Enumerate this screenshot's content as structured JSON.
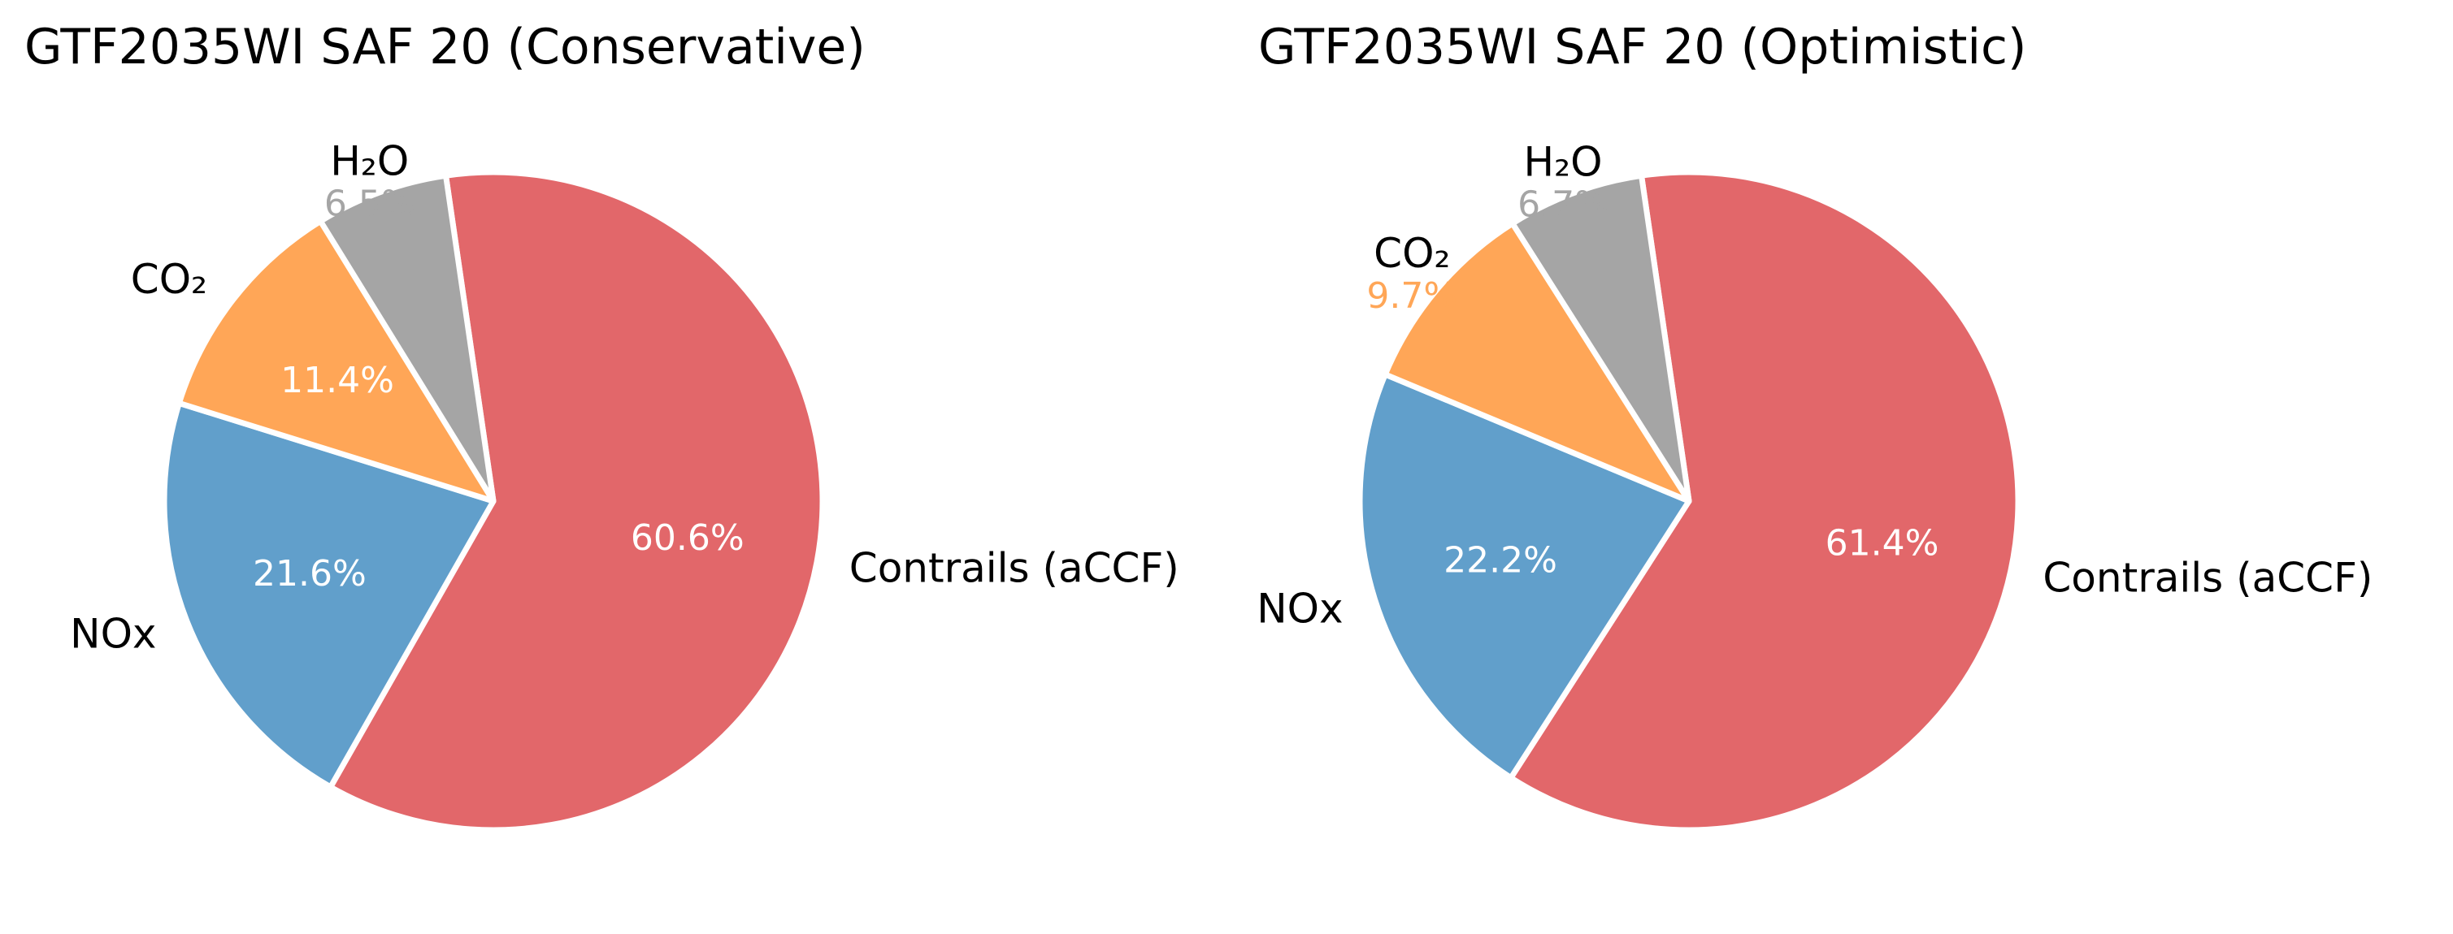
{
  "chart_data": [
    {
      "type": "pie",
      "title": "GTF2035WI SAF 20 (Conservative)",
      "slices": [
        {
          "label": "Contrails (aCCF)",
          "value": 60.6,
          "pct_label": "60.6%",
          "color": "#e2676a",
          "pct_color": "#ffffff"
        },
        {
          "label": "NOx",
          "value": 21.6,
          "pct_label": "21.6%",
          "color": "#619fcb",
          "pct_color": "#ffffff"
        },
        {
          "label": "CO₂",
          "value": 11.4,
          "pct_label": "11.4%",
          "color": "#ffa657",
          "pct_color": "#ffffff"
        },
        {
          "label": "H₂O",
          "value": 6.5,
          "pct_label": "6.5%",
          "color": "#a5a5a5",
          "pct_color": "#a5a5a5"
        }
      ]
    },
    {
      "type": "pie",
      "title": "GTF2035WI SAF 20 (Optimistic)",
      "slices": [
        {
          "label": "Contrails (aCCF)",
          "value": 61.4,
          "pct_label": "61.4%",
          "color": "#e2676a",
          "pct_color": "#ffffff"
        },
        {
          "label": "NOx",
          "value": 22.2,
          "pct_label": "22.2%",
          "color": "#619fcb",
          "pct_color": "#ffffff"
        },
        {
          "label": "CO₂",
          "value": 9.7,
          "pct_label": "9.7%",
          "color": "#ffa657",
          "pct_color": "#ffa657"
        },
        {
          "label": "H₂O",
          "value": 6.7,
          "pct_label": "6.7%",
          "color": "#a5a5a5",
          "pct_color": "#a5a5a5"
        }
      ]
    }
  ]
}
